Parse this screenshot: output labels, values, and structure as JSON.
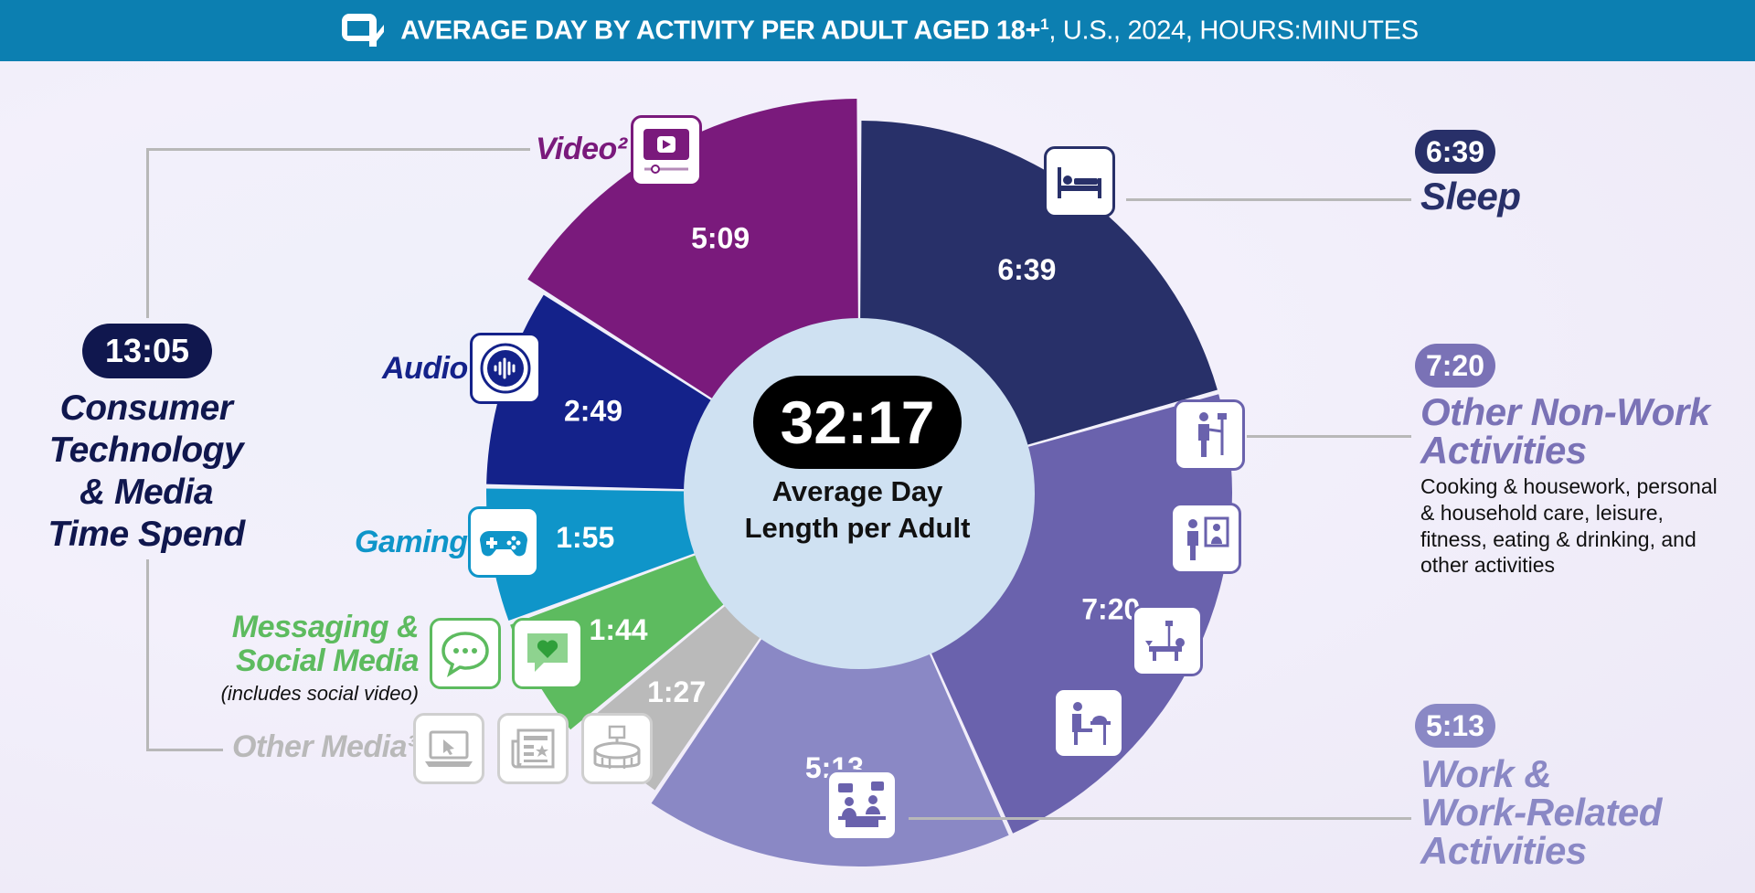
{
  "header": {
    "title_bold": "AVERAGE DAY BY ACTIVITY PER ADULT AGED 18+",
    "title_sup": "1",
    "title_rest": ", U.S., 2024, HOURS:MINUTES"
  },
  "center": {
    "value": "32:17",
    "caption_line1": "Average Day",
    "caption_line2": "Length per Adult"
  },
  "left_group": {
    "total": "13:05",
    "line1": "Consumer",
    "line2": "Technology",
    "line3": "& Media",
    "line4": "Time Spend"
  },
  "callouts": {
    "video": "Video²",
    "audio": "Audio",
    "gaming": "Gaming",
    "messaging_line1": "Messaging &",
    "messaging_line2": "Social Media",
    "messaging_note": "(includes social video)",
    "other_media": "Other Media³",
    "sleep_value": "6:39",
    "sleep_title": "Sleep",
    "nonwork_value": "7:20",
    "nonwork_title_line1": "Other Non-Work",
    "nonwork_title_line2": "Activities",
    "nonwork_desc_line1": "Cooking & housework, personal",
    "nonwork_desc_line2": "& household care, leisure,",
    "nonwork_desc_line3": "fitness, eating & drinking, and",
    "nonwork_desc_line4": "other activities",
    "work_value": "5:13",
    "work_title_line1": "Work &",
    "work_title_line2": "Work-Related",
    "work_title_line3": "Activities"
  },
  "icons": {
    "video": "video-player-icon",
    "audio": "audio-wave-icon",
    "gaming": "gamepad-icon",
    "messaging": "chat-bubble-icon",
    "social": "heart-message-icon",
    "laptop": "laptop-cursor-icon",
    "newspaper": "newspaper-icon",
    "stadium": "stadium-icon",
    "sleep": "bed-icon",
    "housework": "person-mop-icon",
    "care": "person-mirror-icon",
    "fitness": "bench-press-icon",
    "eating": "dining-icon",
    "work": "meeting-icon"
  },
  "chart_data": {
    "type": "pie",
    "title": "AVERAGE DAY BY ACTIVITY PER ADULT AGED 18+, U.S., 2024, HOURS:MINUTES",
    "total_label": "32:17",
    "unit": "hours:minutes",
    "slices": [
      {
        "name": "Sleep",
        "label": "6:39",
        "minutes": 399,
        "color": "#283069"
      },
      {
        "name": "Other Non-Work Activities",
        "label": "7:20",
        "minutes": 440,
        "color": "#6a62ad"
      },
      {
        "name": "Work & Work-Related Activities",
        "label": "5:13",
        "minutes": 313,
        "color": "#8a88c5"
      },
      {
        "name": "Other Media",
        "label": "1:27",
        "minutes": 87,
        "color": "#bababa"
      },
      {
        "name": "Messaging & Social Media",
        "label": "1:44",
        "minutes": 104,
        "color": "#5dbb5f"
      },
      {
        "name": "Gaming",
        "label": "1:55",
        "minutes": 115,
        "color": "#0f95c9"
      },
      {
        "name": "Audio",
        "label": "2:49",
        "minutes": 169,
        "color": "#14228a"
      },
      {
        "name": "Video",
        "label": "5:09",
        "minutes": 309,
        "color": "#7a1a7c"
      }
    ]
  }
}
